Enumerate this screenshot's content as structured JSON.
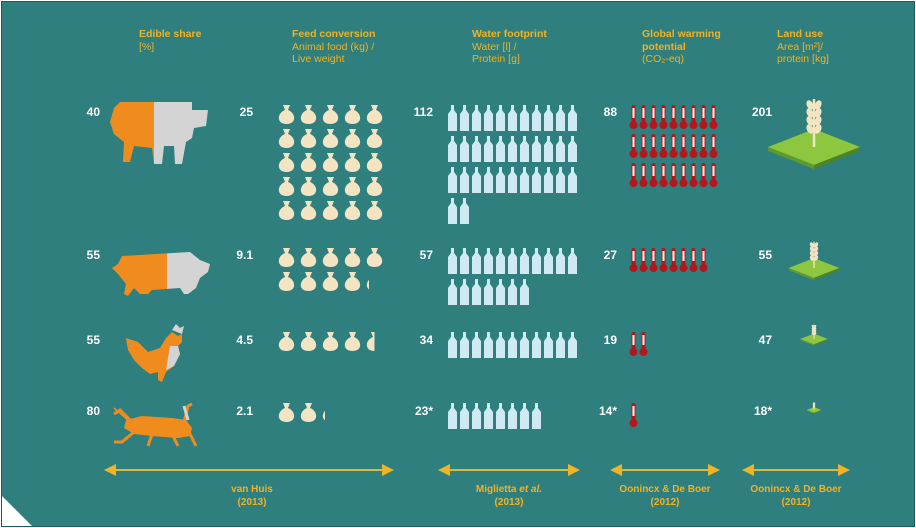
{
  "headers": {
    "edible": {
      "title": "Edible share",
      "sub": "[%]"
    },
    "feed": {
      "title": "Feed conversion",
      "sub1": "Animal food (kg) /",
      "sub2": "Live weight"
    },
    "water": {
      "title": "Water footprint",
      "sub1": "Water [l] /",
      "sub2": "Protein [g]"
    },
    "gwp": {
      "title1": "Global warming",
      "title2": "potential",
      "sub": "(CO₂-eq)"
    },
    "land": {
      "title": "Land use",
      "sub1": "Area [m²]/",
      "sub2": "protein [kg]"
    }
  },
  "rows": [
    {
      "animal": "cattle",
      "edible": "40",
      "feed": "25",
      "water": "112",
      "gwp": "88",
      "land": "201"
    },
    {
      "animal": "pig",
      "edible": "55",
      "feed": "9.1",
      "water": "57",
      "gwp": "27",
      "land": "55"
    },
    {
      "animal": "chicken",
      "edible": "55",
      "feed": "4.5",
      "water": "34",
      "gwp": "19",
      "land": "47"
    },
    {
      "animal": "cricket",
      "edible": "80",
      "feed": "2.1",
      "water": "23*",
      "gwp": "14*",
      "land": "18*"
    }
  ],
  "icon_counts": {
    "feed_sacks": [
      25,
      9.1,
      4.5,
      2.1
    ],
    "water_bottles": [
      35,
      18,
      11,
      8
    ],
    "thermometers": [
      27,
      8,
      2,
      1
    ],
    "land_scale": [
      1.0,
      0.55,
      0.3,
      0.16
    ]
  },
  "sources": [
    {
      "line1": "van Huis",
      "line2": "(2013)"
    },
    {
      "line1": "Miglietta",
      "line1_em": "et al.",
      "line2": "(2013)"
    },
    {
      "line1": "Oonincx & De Boer",
      "line2": "(2012)"
    },
    {
      "line1": "Oonincx & De Boer",
      "line2": "(2012)"
    }
  ],
  "colors": {
    "background": "#2f7f7f",
    "accent": "#f0b323",
    "orange": "#f08c1e",
    "grey": "#cfcfcf",
    "sack": "#f3e4c3",
    "bottle": "#cfeaf3",
    "thermo": "#b3171b",
    "field": "#8dc63f"
  }
}
